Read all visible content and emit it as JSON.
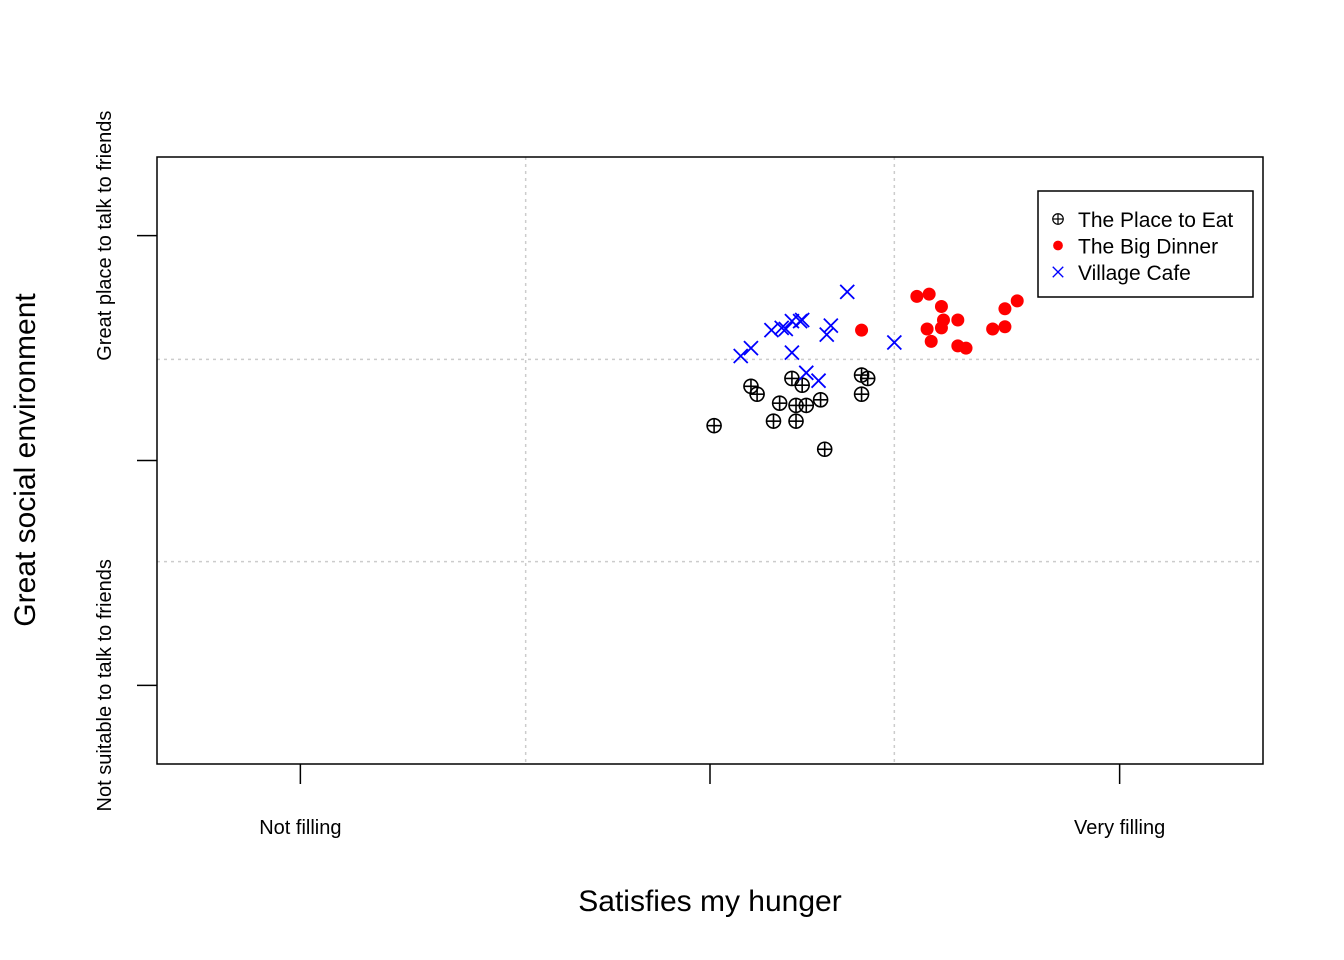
{
  "chart_data": {
    "type": "scatter",
    "title": "",
    "xlabel": "Satisfies my hunger",
    "ylabel": "Great social environment",
    "xlim": [
      -1.35,
      1.35
    ],
    "ylim": [
      -1.35,
      1.35
    ],
    "x_ticks": [
      {
        "value": -1,
        "label": "Not filling"
      },
      {
        "value": 0,
        "label": ""
      },
      {
        "value": 1,
        "label": "Very filling"
      }
    ],
    "y_ticks": [
      {
        "value": -1,
        "label": "Not suitable to talk to friends"
      },
      {
        "value": 0,
        "label": ""
      },
      {
        "value": 1,
        "label": "Great place to talk to friends"
      }
    ],
    "grid": {
      "x": [
        -0.45,
        0.45
      ],
      "y": [
        -0.45,
        0.45
      ],
      "style": "dotted",
      "color": "#cccccc"
    },
    "legend": {
      "position": "top-right"
    },
    "series": [
      {
        "name": "The Place to Eat",
        "color": "#000000",
        "marker": "circle-plus",
        "points": [
          [
            0.01,
            0.155
          ],
          [
            0.1,
            0.33
          ],
          [
            0.115,
            0.295
          ],
          [
            0.155,
            0.175
          ],
          [
            0.17,
            0.255
          ],
          [
            0.2,
            0.365
          ],
          [
            0.21,
            0.245
          ],
          [
            0.21,
            0.175
          ],
          [
            0.225,
            0.335
          ],
          [
            0.235,
            0.245
          ],
          [
            0.27,
            0.27
          ],
          [
            0.28,
            0.05
          ],
          [
            0.37,
            0.38
          ],
          [
            0.37,
            0.295
          ],
          [
            0.385,
            0.365
          ]
        ]
      },
      {
        "name": "The Big Dinner",
        "color": "#ff0000",
        "marker": "filled-circle",
        "points": [
          [
            0.37,
            0.58
          ],
          [
            0.505,
            0.73
          ],
          [
            0.535,
            0.74
          ],
          [
            0.53,
            0.585
          ],
          [
            0.54,
            0.53
          ],
          [
            0.565,
            0.685
          ],
          [
            0.57,
            0.625
          ],
          [
            0.565,
            0.59
          ],
          [
            0.605,
            0.625
          ],
          [
            0.605,
            0.51
          ],
          [
            0.625,
            0.5
          ],
          [
            0.69,
            0.585
          ],
          [
            0.72,
            0.675
          ],
          [
            0.72,
            0.595
          ],
          [
            0.75,
            0.71
          ]
        ]
      },
      {
        "name": "Village Cafe",
        "color": "#0000ff",
        "marker": "x",
        "points": [
          [
            0.075,
            0.465
          ],
          [
            0.1,
            0.5
          ],
          [
            0.15,
            0.58
          ],
          [
            0.175,
            0.59
          ],
          [
            0.185,
            0.585
          ],
          [
            0.2,
            0.62
          ],
          [
            0.22,
            0.62
          ],
          [
            0.225,
            0.625
          ],
          [
            0.2,
            0.48
          ],
          [
            0.235,
            0.39
          ],
          [
            0.265,
            0.355
          ],
          [
            0.285,
            0.56
          ],
          [
            0.295,
            0.6
          ],
          [
            0.335,
            0.75
          ],
          [
            0.45,
            0.525
          ]
        ]
      }
    ]
  }
}
